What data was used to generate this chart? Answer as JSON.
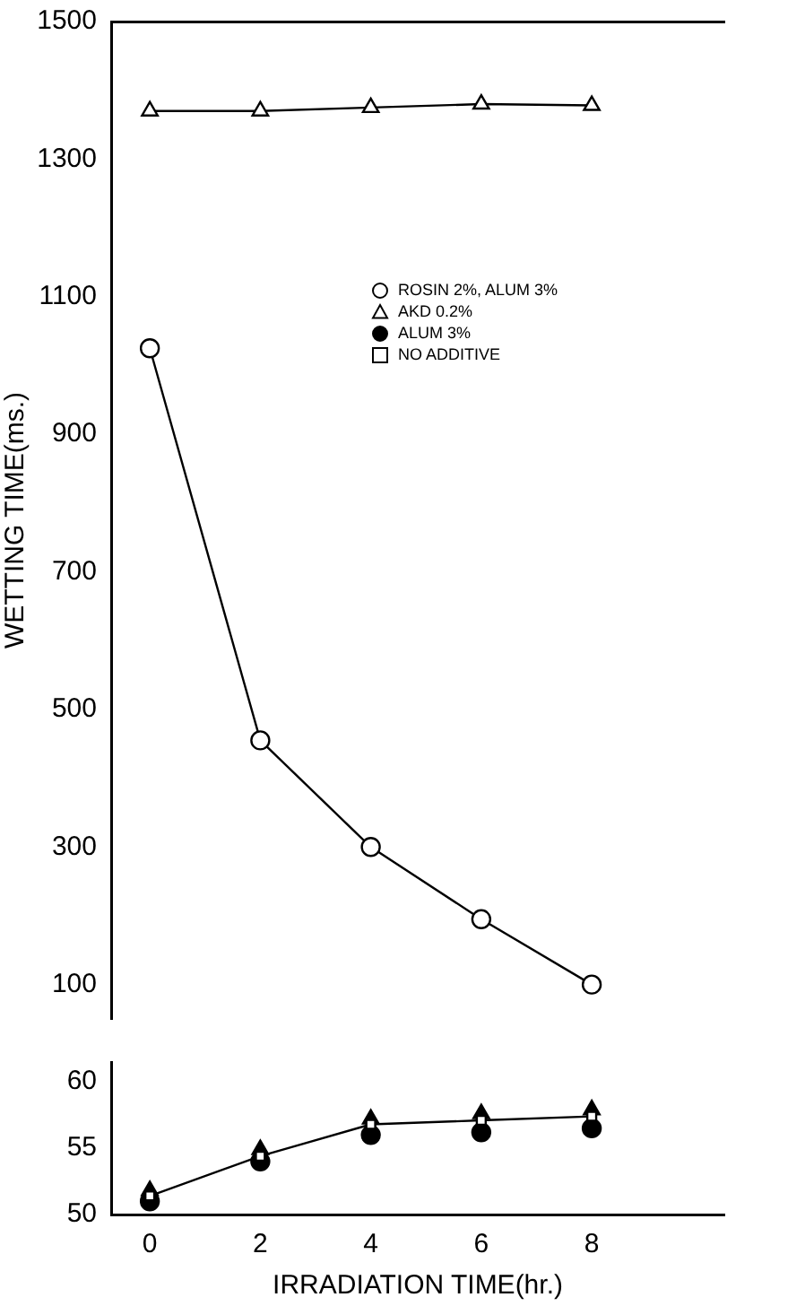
{
  "chart_data": [
    {
      "type": "line",
      "ylabel": "WETTING TIME(ms.)",
      "x": [
        0,
        2,
        4,
        6,
        8
      ],
      "xlim": [
        -0.7,
        10.4
      ],
      "ylim": [
        50,
        1500
      ],
      "yticks": [
        100,
        300,
        500,
        700,
        900,
        1100,
        1300,
        1500
      ],
      "tick_labels": "y",
      "grid": false,
      "legend": "top right",
      "series": [
        {
          "name": "ROSIN 2%, ALUM 3%",
          "color": "#ffffff",
          "marker": "circle",
          "values": [
            1025,
            455,
            300,
            195,
            100
          ]
        },
        {
          "name": "AKD 0.2%",
          "color": "#ffffff",
          "marker": "triangle",
          "values": [
            1370,
            1370,
            1375,
            1380,
            1378
          ]
        }
      ]
    },
    {
      "type": "line",
      "xlabel": "IRRADIATION TIME(hr.)",
      "x": [
        0,
        2,
        4,
        6,
        8
      ],
      "xlim": [
        -0.7,
        10.4
      ],
      "xticks": [
        0,
        2,
        4,
        6,
        8
      ],
      "ylim": [
        50,
        61.5
      ],
      "yticks": [
        50,
        55,
        60
      ],
      "grid": false,
      "series": [
        {
          "name": "ALUM 3%",
          "type": "scatter",
          "color": "#000000",
          "marker": "circle",
          "values": [
            51.0,
            54.0,
            56.0,
            56.2,
            56.5
          ]
        },
        {
          "type": "scatter",
          "color": "#000000",
          "marker": "triangle",
          "values": [
            51.8,
            54.9,
            57.2,
            57.6,
            57.9
          ]
        },
        {
          "name": "NO ADDITIVE",
          "type": "line",
          "color": "#ffffff",
          "marker": "square",
          "values": [
            51.4,
            54.4,
            56.8,
            57.1,
            57.4
          ]
        }
      ]
    }
  ]
}
